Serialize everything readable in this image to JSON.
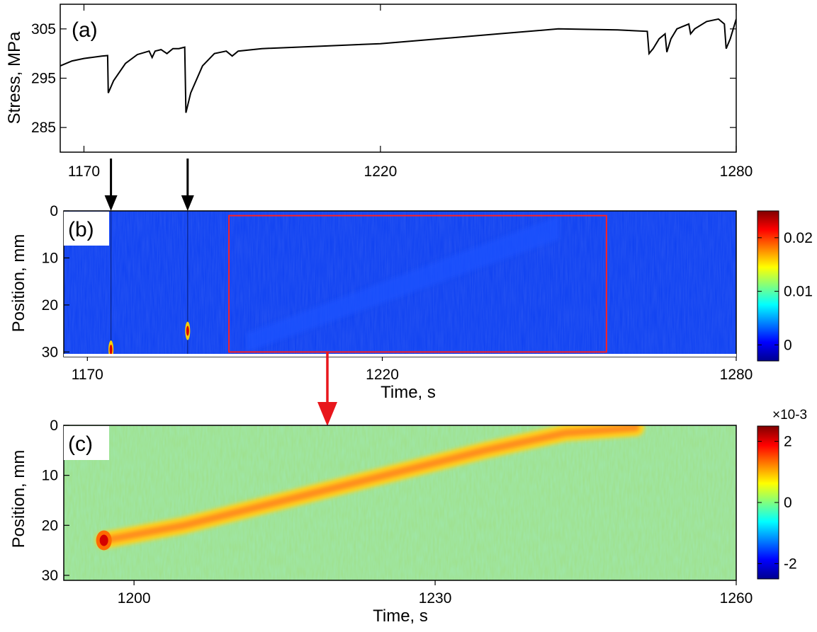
{
  "chart_data": [
    {
      "panel": "(a)",
      "type": "line",
      "ylabel": "Stress, MPa",
      "xlim": [
        1166,
        1280
      ],
      "ylim": [
        280,
        310
      ],
      "xticks": [
        1170,
        1220,
        1280
      ],
      "yticks": [
        285,
        295,
        305
      ],
      "series": [
        {
          "x": [
            1166,
            1168,
            1170,
            1173,
            1174,
            1174.1,
            1175,
            1177,
            1179,
            1181,
            1181.5,
            1182,
            1183,
            1184,
            1185,
            1186,
            1187,
            1187.2,
            1188,
            1190,
            1192,
            1194,
            1195,
            1196,
            1200,
            1210,
            1220,
            1230,
            1240,
            1250,
            1260,
            1265,
            1265.3,
            1266,
            1267,
            1268,
            1268.3,
            1269,
            1270,
            1271,
            1272,
            1272.3,
            1273,
            1275,
            1277,
            1278,
            1278.3,
            1279,
            1280
          ],
          "y": [
            297.5,
            298.5,
            299,
            299.5,
            299.6,
            292,
            294.5,
            298,
            299.8,
            300.5,
            299.2,
            300.5,
            300.8,
            300,
            301,
            301,
            301.3,
            288,
            292,
            297.5,
            300,
            300.5,
            299.5,
            300.5,
            301,
            301.5,
            302,
            303,
            304,
            305,
            304.8,
            304.5,
            300,
            301,
            303,
            304,
            300.3,
            303,
            305,
            305.5,
            306,
            304,
            305,
            306.5,
            307,
            306,
            301,
            303,
            307
          ]
        }
      ]
    },
    {
      "panel": "(b)",
      "type": "heatmap",
      "xlabel": "Time, s",
      "ylabel": "Position, mm",
      "xlim": [
        1166,
        1280
      ],
      "ylim": [
        0,
        31
      ],
      "xticks": [
        1170,
        1220,
        1280
      ],
      "yticks": [
        0,
        10,
        20,
        30
      ],
      "colorbar_ticks": [
        0,
        0.01,
        0.02
      ],
      "colorbar_tick_labels": [
        "0",
        "0.01",
        "0.02"
      ],
      "color_range": [
        -0.003,
        0.025
      ],
      "highlight_box": {
        "x": [
          1194,
          1258
        ],
        "y": [
          1,
          30
        ]
      },
      "hotspots": [
        {
          "time": 1174,
          "position": 29.5,
          "value": 0.02
        },
        {
          "time": 1187,
          "position": 25.5,
          "value": 0.025
        }
      ]
    },
    {
      "panel": "(c)",
      "type": "heatmap",
      "xlabel": "Time, s",
      "ylabel": "Position, mm",
      "xlim": [
        1193,
        1260
      ],
      "ylim": [
        0,
        31
      ],
      "xticks": [
        1200,
        1230,
        1260
      ],
      "yticks": [
        0,
        10,
        20,
        30
      ],
      "colorbar_ticks": [
        -2,
        0,
        2
      ],
      "colorbar_multiplier": "×10-3",
      "color_range": [
        -2.5,
        2.5
      ],
      "band": [
        {
          "time": 1197,
          "position": 23
        },
        {
          "time": 1205,
          "position": 20
        },
        {
          "time": 1215,
          "position": 15
        },
        {
          "time": 1225,
          "position": 10
        },
        {
          "time": 1235,
          "position": 5
        },
        {
          "time": 1243,
          "position": 1.5
        },
        {
          "time": 1250,
          "position": 0.5
        }
      ]
    }
  ]
}
